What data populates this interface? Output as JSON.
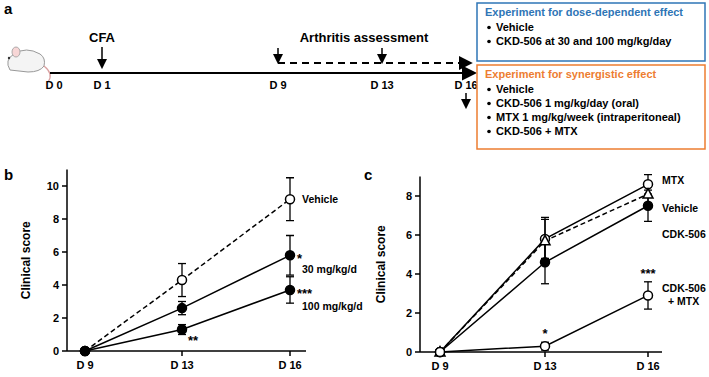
{
  "timeline": {
    "panel": "a",
    "days": [
      "D 0",
      "D 1",
      "D 9",
      "D 13",
      "D 16"
    ],
    "events": [
      {
        "label": "CFA",
        "days": [
          "D 1"
        ]
      },
      {
        "label": "Arthritis assessment",
        "days": [
          "D 9",
          "D 13",
          "D 16"
        ]
      }
    ]
  },
  "experiments": [
    {
      "title": "Experiment for dose-dependent effect",
      "color": "#2e75b6",
      "items": [
        "Vehicle",
        "CKD-506 at 30 and 100 mg/kg/day"
      ]
    },
    {
      "title": "Experiment for synergistic effect",
      "color": "#ed7d31",
      "items": [
        "Vehicle",
        "CKD-506 1 mg/kg/day (oral)",
        "MTX 1 mg/kg/week (intraperitoneal)",
        "CKD-506 + MTX"
      ]
    }
  ],
  "chart_data": [
    {
      "panel": "b",
      "type": "line",
      "y_label": "Clinical score",
      "categories": [
        "D 9",
        "D 13",
        "D 16"
      ],
      "ylim": [
        0,
        11
      ],
      "yticks": [
        0,
        2,
        4,
        6,
        8,
        10
      ],
      "grid": false,
      "series": [
        {
          "name": "Vehicle",
          "color": "#000000",
          "marker": "open-circle",
          "line_style": "dashed",
          "values": [
            0,
            4.3,
            9.2
          ],
          "errors": [
            0,
            1.0,
            1.3
          ],
          "significance": [
            null,
            null,
            null
          ]
        },
        {
          "name": "30 mg/kg/d",
          "color": "#000000",
          "marker": "filled-circle",
          "line_style": "solid",
          "values": [
            0,
            2.6,
            5.8
          ],
          "errors": [
            0,
            0.4,
            1.2
          ],
          "significance": [
            null,
            null,
            "*"
          ]
        },
        {
          "name": "100 mg/kg/d",
          "color": "#000000",
          "marker": "filled-circle",
          "line_style": "solid",
          "values": [
            0,
            1.3,
            3.7
          ],
          "errors": [
            0,
            0.3,
            0.8
          ],
          "significance": [
            null,
            "**",
            "***"
          ]
        }
      ]
    },
    {
      "panel": "c",
      "type": "line",
      "y_label": "Clinical score",
      "categories": [
        "D 9",
        "D 13",
        "D 16"
      ],
      "ylim": [
        0,
        9
      ],
      "yticks": [
        0,
        2,
        4,
        6,
        8
      ],
      "grid": false,
      "series": [
        {
          "name": "MTX",
          "color": "#000000",
          "marker": "open-circle",
          "line_style": "solid",
          "values": [
            0,
            5.8,
            8.6
          ],
          "errors": [
            0,
            1.0,
            0.5
          ],
          "significance": [
            null,
            null,
            null
          ]
        },
        {
          "name": "Vehicle",
          "color": "#000000",
          "marker": "open-triangle",
          "line_style": "dashed",
          "values": [
            0,
            5.7,
            8.1
          ],
          "errors": [
            0,
            1.2,
            0.6
          ],
          "significance": [
            null,
            null,
            null
          ]
        },
        {
          "name": "CDK-506",
          "color": "#000000",
          "marker": "filled-circle",
          "line_style": "solid",
          "values": [
            0,
            4.6,
            7.5
          ],
          "errors": [
            0,
            1.1,
            0.8
          ],
          "significance": [
            null,
            null,
            null
          ]
        },
        {
          "name": "CDK-506 + MTX",
          "color": "#000000",
          "marker": "open-circle",
          "line_style": "solid",
          "values": [
            0,
            0.3,
            2.9
          ],
          "errors": [
            0,
            0.2,
            0.7
          ],
          "significance": [
            null,
            "*",
            "***"
          ]
        }
      ]
    }
  ]
}
